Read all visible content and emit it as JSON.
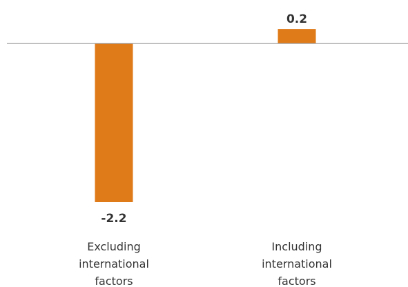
{
  "chart_data": {
    "type": "bar",
    "categories": [
      [
        "Excluding",
        "international",
        "factors"
      ],
      [
        "Including",
        "international",
        "factors"
      ]
    ],
    "values": [
      -2.2,
      0.2
    ],
    "value_labels": [
      "-2.2",
      "0.2"
    ],
    "bar_color": "#E07B1A",
    "zero_line_color": "#9a9a9a",
    "text_color": "#333333",
    "grid": false,
    "legend": "none"
  }
}
